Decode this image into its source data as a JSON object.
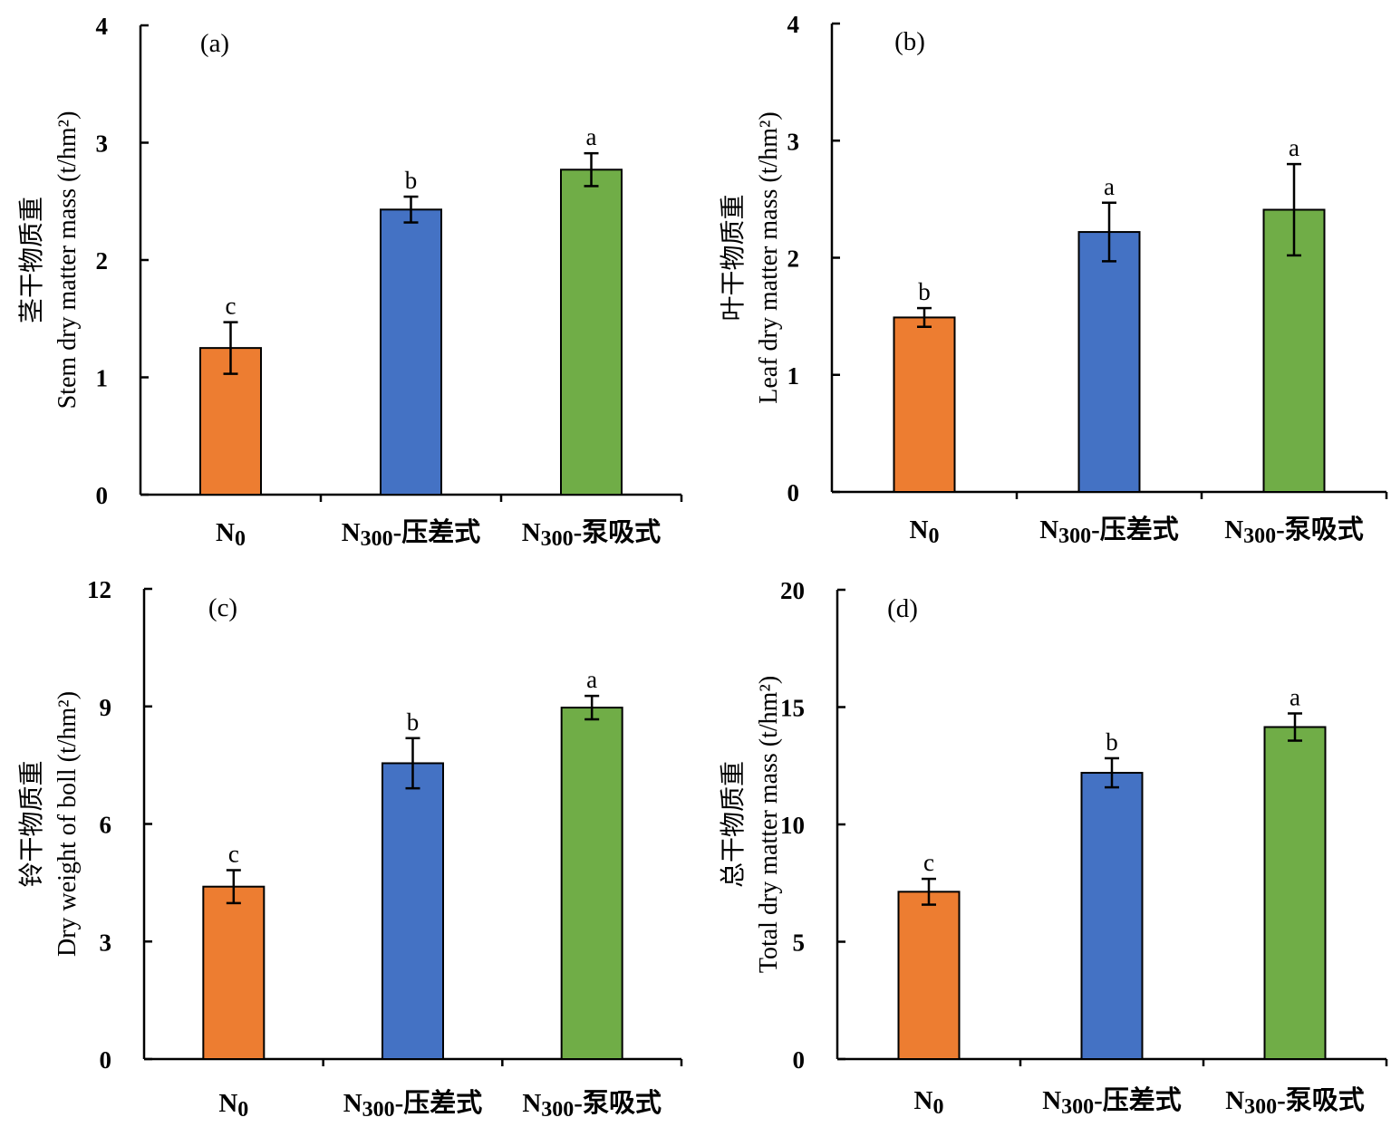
{
  "chart_data": [
    {
      "type": "bar",
      "panel": "(a)",
      "ylabel": "茎干物质重 Stem dry matter mass (t/hm²)",
      "ylabel_lines": [
        "茎干物质重",
        "Stem dry matter mass (t/hm²)"
      ],
      "ylim": [
        0,
        4
      ],
      "yticks": [
        0,
        1,
        2,
        3,
        4
      ],
      "categories": [
        "N0",
        "N300-压差式",
        "N300-泵吸式"
      ],
      "values": [
        1.25,
        2.43,
        2.77
      ],
      "errors": [
        0.22,
        0.11,
        0.14
      ],
      "significance": [
        "c",
        "b",
        "a"
      ],
      "colors": [
        "#ED7D31",
        "#4472C4",
        "#70AD47"
      ]
    },
    {
      "type": "bar",
      "panel": "(b)",
      "ylabel": "叶干物质重 Leaf dry matter mass (t/hm²)",
      "ylabel_lines": [
        "叶干物质重",
        "Leaf dry matter mass (t/hm²)"
      ],
      "ylim": [
        0,
        4
      ],
      "yticks": [
        0,
        1,
        2,
        3,
        4
      ],
      "categories": [
        "N0",
        "N300-压差式",
        "N300-泵吸式"
      ],
      "values": [
        1.49,
        2.22,
        2.41
      ],
      "errors": [
        0.08,
        0.25,
        0.39
      ],
      "significance": [
        "b",
        "a",
        "a"
      ],
      "colors": [
        "#ED7D31",
        "#4472C4",
        "#70AD47"
      ]
    },
    {
      "type": "bar",
      "panel": "(c)",
      "ylabel": "铃干物质重 Dry weight of boll (t/hm²)",
      "ylabel_lines": [
        "铃干物质重",
        "Dry weight of boll (t/hm²)"
      ],
      "ylim": [
        0,
        12
      ],
      "yticks": [
        0,
        3,
        6,
        9,
        12
      ],
      "categories": [
        "N0",
        "N300-压差式",
        "N300-泵吸式"
      ],
      "values": [
        4.4,
        7.55,
        8.97
      ],
      "errors": [
        0.42,
        0.64,
        0.3
      ],
      "significance": [
        "c",
        "b",
        "a"
      ],
      "colors": [
        "#ED7D31",
        "#4472C4",
        "#70AD47"
      ]
    },
    {
      "type": "bar",
      "panel": "(d)",
      "ylabel": "总干物质重 Total dry matter mass (t/hm²)",
      "ylabel_lines": [
        "总干物质重",
        "Total dry matter mass (t/hm²)"
      ],
      "ylim": [
        0,
        20
      ],
      "yticks": [
        0,
        5,
        10,
        15,
        20
      ],
      "categories": [
        "N0",
        "N300-压差式",
        "N300-泵吸式"
      ],
      "values": [
        7.13,
        12.2,
        14.15
      ],
      "errors": [
        0.55,
        0.62,
        0.58
      ],
      "significance": [
        "c",
        "b",
        "a"
      ],
      "colors": [
        "#ED7D31",
        "#4472C4",
        "#70AD47"
      ]
    }
  ]
}
